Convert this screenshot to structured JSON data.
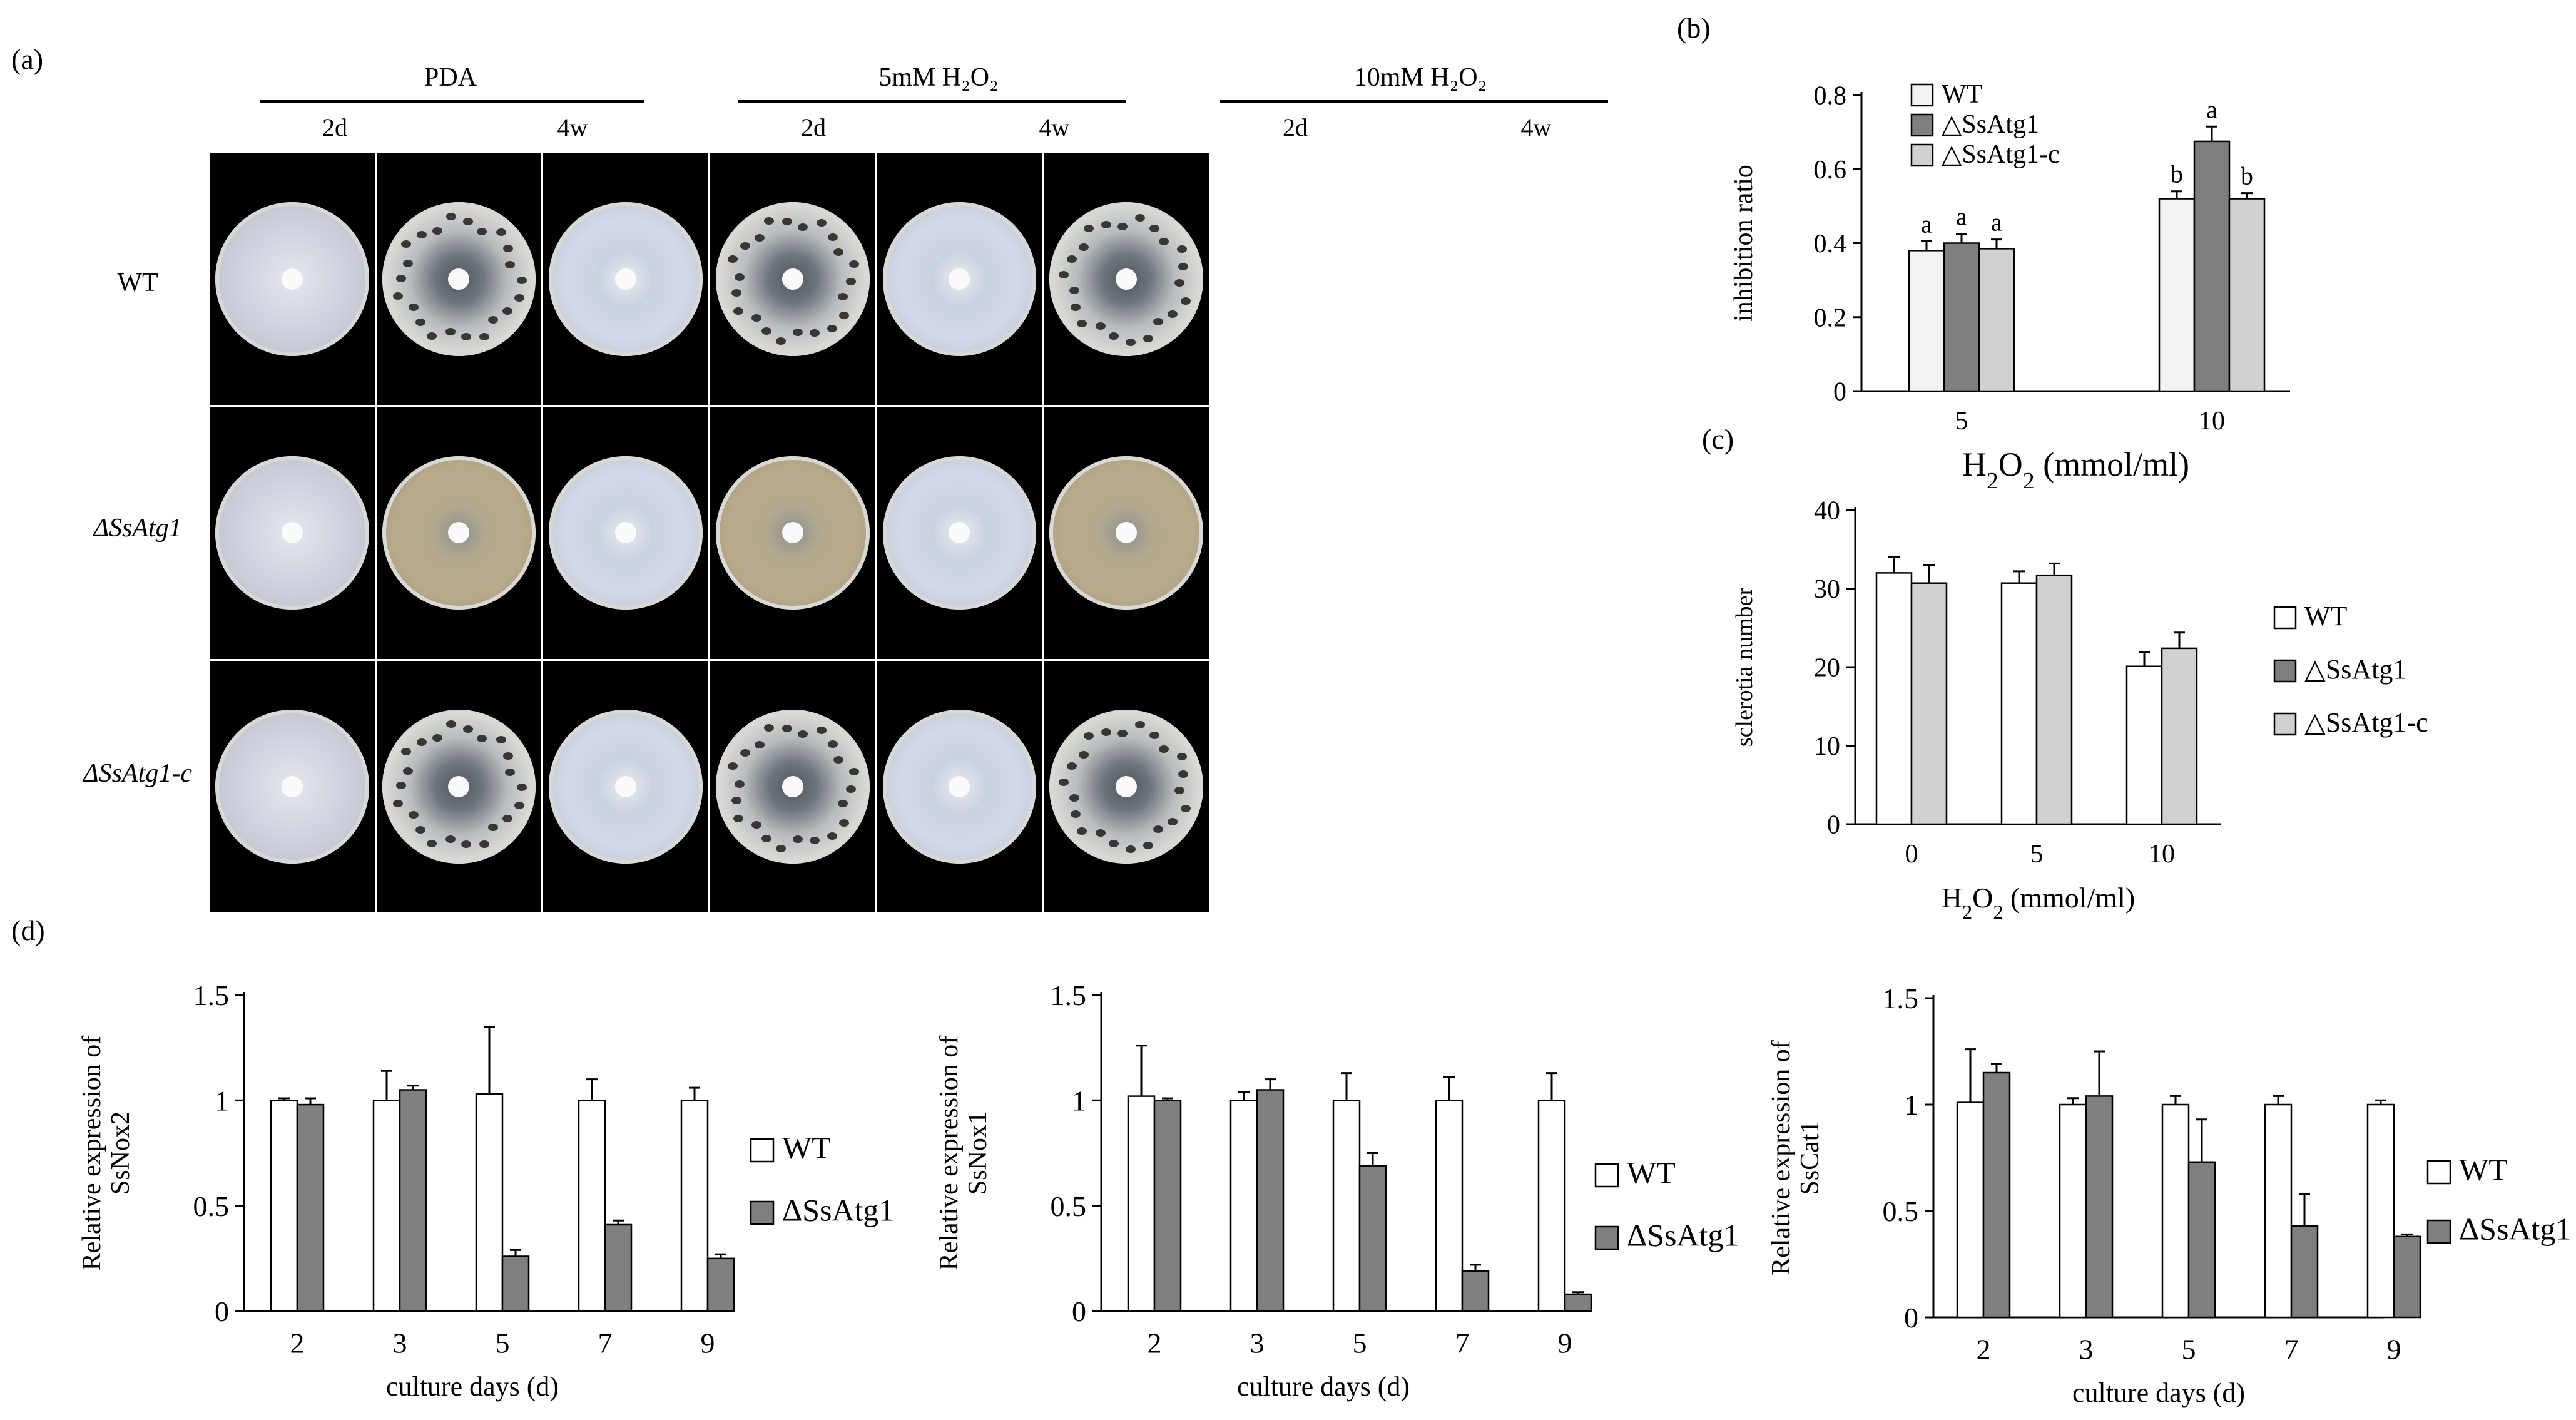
{
  "panel_labels": {
    "a": "(a)",
    "b": "(b)",
    "c": "(c)",
    "d": "(d)"
  },
  "panel_a": {
    "conditions": [
      {
        "label": "PDA",
        "days": [
          "2d",
          "4w"
        ]
      },
      {
        "label": "5mM H₂O₂",
        "days": [
          "2d",
          "4w"
        ]
      },
      {
        "label": "10mM H₂O₂",
        "days": [
          "2d",
          "4w"
        ]
      }
    ],
    "strains": [
      "WT",
      "ΔSsAtg1",
      "ΔSsAtg1-c"
    ],
    "colors": {
      "fresh_mycelium": "#c9cdd8",
      "old_white": "#dcdcd6",
      "old_tan": "#b8a98c",
      "agar": "#d2d9e6",
      "sclerotia": "#3a3633"
    }
  },
  "chart_data": [
    {
      "id": "b",
      "type": "bar",
      "categories": [
        "5",
        "10"
      ],
      "xlabel": "H₂O₂ (mmol/ml)",
      "ylabel": "inhibition ratio",
      "ylim": [
        0,
        0.8
      ],
      "yticks": [
        "0",
        "0.2",
        "0.4",
        "0.6",
        "0.8"
      ],
      "legend_position": "top-left",
      "series": [
        {
          "name": "WT",
          "values": [
            0.38,
            0.52
          ],
          "errors": [
            0.025,
            0.02
          ],
          "letters": [
            "a",
            "b"
          ],
          "color": "#f2f2f2"
        },
        {
          "name": "△SsAtg1",
          "values": [
            0.4,
            0.675
          ],
          "errors": [
            0.025,
            0.04
          ],
          "letters": [
            "a",
            "a"
          ],
          "color": "#7f7f7f"
        },
        {
          "name": "△SsAtg1-c",
          "values": [
            0.385,
            0.52
          ],
          "errors": [
            0.025,
            0.015
          ],
          "letters": [
            "a",
            "b"
          ],
          "color": "#d0d0d0"
        }
      ]
    },
    {
      "id": "c",
      "type": "bar",
      "categories": [
        "0",
        "5",
        "10"
      ],
      "xlabel": "H₂O₂ (mmol/ml)",
      "ylabel": "sclerotia number",
      "ylim": [
        0,
        40
      ],
      "yticks": [
        "0",
        "10",
        "20",
        "30",
        "40"
      ],
      "legend_position": "right",
      "series": [
        {
          "name": "WT",
          "values": [
            32,
            30.7,
            20.1
          ],
          "errors": [
            2,
            1.5,
            1.8
          ],
          "color": "#ffffff"
        },
        {
          "name": "△SsAtg1",
          "values": [
            null,
            null,
            null
          ],
          "errors": [
            0,
            0,
            0
          ],
          "color": "#7f7f7f"
        },
        {
          "name": "△SsAtg1-c",
          "values": [
            30.7,
            31.7,
            22.4
          ],
          "errors": [
            2.3,
            1.5,
            2
          ],
          "color": "#d0d0d0"
        }
      ]
    },
    {
      "id": "d1",
      "type": "bar",
      "categories": [
        "2",
        "3",
        "5",
        "7",
        "9"
      ],
      "xlabel": "culture days (d)",
      "ylabel_lines": [
        "Relative expression of",
        "SsNox2"
      ],
      "ylim": [
        0,
        1.5
      ],
      "yticks": [
        "0",
        "0.5",
        "1",
        "1.5"
      ],
      "legend_position": "right",
      "series": [
        {
          "name": "WT",
          "values": [
            1.0,
            1.0,
            1.03,
            1.0,
            1.0
          ],
          "errors": [
            0.01,
            0.14,
            0.32,
            0.1,
            0.06
          ],
          "color": "#ffffff"
        },
        {
          "name": "ΔSsAtg1",
          "values": [
            0.98,
            1.05,
            0.26,
            0.41,
            0.25
          ],
          "errors": [
            0.03,
            0.02,
            0.03,
            0.02,
            0.02
          ],
          "color": "#7f7f7f"
        }
      ]
    },
    {
      "id": "d2",
      "type": "bar",
      "categories": [
        "2",
        "3",
        "5",
        "7",
        "9"
      ],
      "xlabel": "culture days (d)",
      "ylabel_lines": [
        "Relative expression of",
        "SsNox1"
      ],
      "ylim": [
        0,
        1.5
      ],
      "yticks": [
        "0",
        "0.5",
        "1",
        "1.5"
      ],
      "legend_position": "right",
      "series": [
        {
          "name": "WT",
          "values": [
            1.02,
            1.0,
            1.0,
            1.0,
            1.0
          ],
          "errors": [
            0.24,
            0.04,
            0.13,
            0.11,
            0.13
          ],
          "color": "#ffffff"
        },
        {
          "name": "ΔSsAtg1",
          "values": [
            1.0,
            1.05,
            0.69,
            0.19,
            0.08
          ],
          "errors": [
            0.01,
            0.05,
            0.06,
            0.03,
            0.01
          ],
          "color": "#7f7f7f"
        }
      ]
    },
    {
      "id": "d3",
      "type": "bar",
      "categories": [
        "2",
        "3",
        "5",
        "7",
        "9"
      ],
      "xlabel": "culture days (d)",
      "ylabel_lines": [
        "Relative expression of",
        "SsCat1"
      ],
      "ylim": [
        0,
        1.5
      ],
      "yticks": [
        "0",
        "0.5",
        "1",
        "1.5"
      ],
      "legend_position": "right",
      "series": [
        {
          "name": "WT",
          "values": [
            1.01,
            1.0,
            1.0,
            1.0,
            1.0
          ],
          "errors": [
            0.25,
            0.03,
            0.04,
            0.04,
            0.02
          ],
          "color": "#ffffff"
        },
        {
          "name": "ΔSsAtg1",
          "values": [
            1.15,
            1.04,
            0.73,
            0.43,
            0.38
          ],
          "errors": [
            0.04,
            0.21,
            0.2,
            0.15,
            0.01
          ],
          "color": "#7f7f7f"
        }
      ]
    }
  ]
}
